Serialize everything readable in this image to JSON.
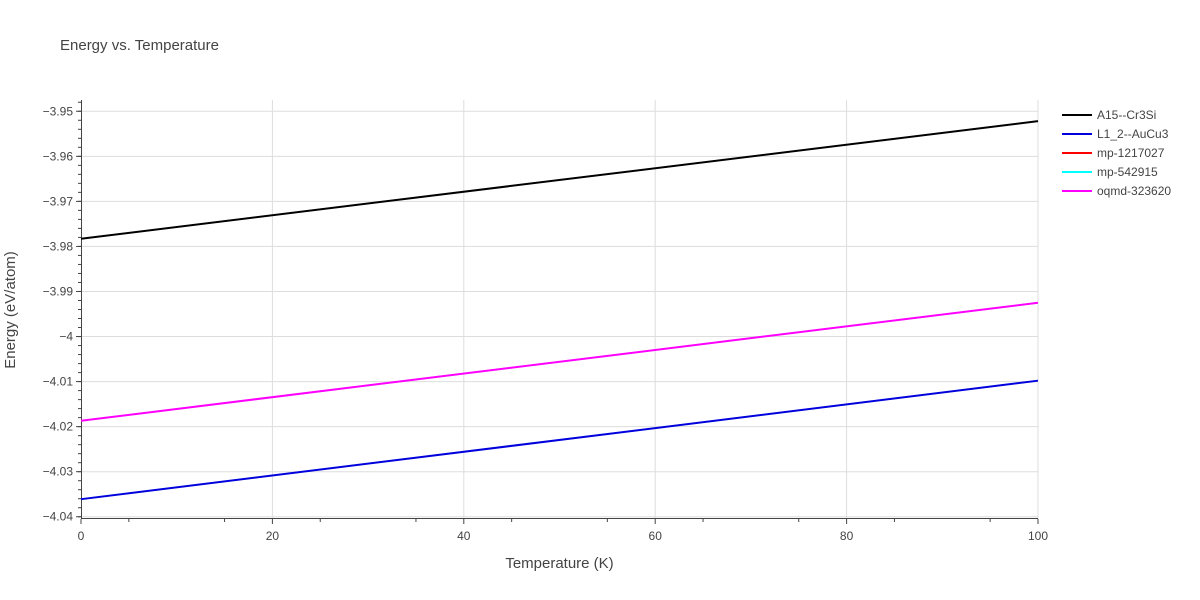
{
  "chart_data": {
    "type": "line",
    "title": "Energy vs. Temperature",
    "xlabel": "Temperature (K)",
    "ylabel": "Energy (eV/atom)",
    "xlim": [
      0,
      100
    ],
    "ylim": [
      -4.0405,
      -3.9475
    ],
    "x_ticks": [
      0,
      20,
      40,
      60,
      80,
      100
    ],
    "x_tick_labels": [
      "0",
      "20",
      "40",
      "60",
      "80",
      "100"
    ],
    "y_ticks": [
      -3.95,
      -3.96,
      -3.97,
      -3.98,
      -3.99,
      -4.0,
      -4.01,
      -4.02,
      -4.03,
      -4.04
    ],
    "y_tick_labels": [
      "−3.95",
      "−3.96",
      "−3.97",
      "−3.98",
      "−3.99",
      "−4",
      "−4.01",
      "−4.02",
      "−4.03",
      "−4.04"
    ],
    "grid": true,
    "legend_position": "top-right",
    "series": [
      {
        "name": "A15--Cr3Si",
        "color": "#000000",
        "x": [
          0,
          100
        ],
        "y": [
          -3.9783,
          -3.9522
        ]
      },
      {
        "name": "L1_2--AuCu3",
        "color": "#0000dd",
        "x": [
          0,
          100
        ],
        "y": [
          -4.0361,
          -4.0098
        ]
      },
      {
        "name": "mp-1217027",
        "color": "#ff0000",
        "x": [],
        "y": []
      },
      {
        "name": "mp-542915",
        "color": "#00ffff",
        "x": [],
        "y": []
      },
      {
        "name": "oqmd-323620",
        "color": "#ff00ff",
        "x": [
          0,
          100
        ],
        "y": [
          -4.0187,
          -3.9925
        ]
      }
    ]
  }
}
